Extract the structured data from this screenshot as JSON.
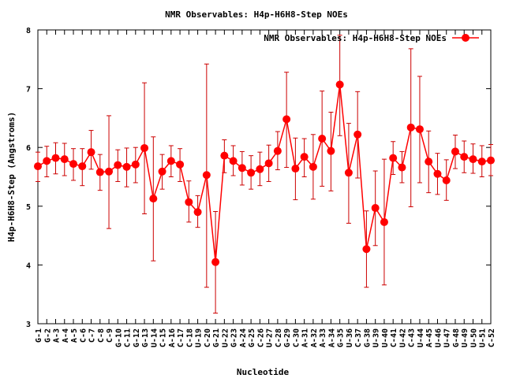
{
  "chart_data": {
    "type": "line",
    "title": "NMR Observables: H4p-H6H8-Step NOEs",
    "xlabel": "Nucleotide",
    "ylabel": "H4p-H6H8-Step (Angstroms)",
    "ylim": [
      3,
      8
    ],
    "xlim": [
      1,
      52
    ],
    "yticks": [
      "3",
      "4",
      "5",
      "6",
      "7",
      "8"
    ],
    "legend_position": "top-right",
    "grid": false,
    "line_color": "#ff0000",
    "marker_color": "#ff0000",
    "error_bar_color": "#cc0000",
    "categories": [
      "G-1",
      "G-2",
      "A-3",
      "A-4",
      "A-5",
      "C-6",
      "C-7",
      "C-8",
      "C-9",
      "G-10",
      "C-11",
      "G-12",
      "G-13",
      "U-14",
      "C-15",
      "A-16",
      "C-17",
      "C-18",
      "U-19",
      "C-20",
      "G-21",
      "U-22",
      "G-23",
      "A-24",
      "G-25",
      "C-26",
      "U-27",
      "C-28",
      "G-29",
      "C-30",
      "A-31",
      "A-32",
      "A-33",
      "A-34",
      "G-35",
      "U-36",
      "C-37",
      "G-38",
      "U-39",
      "U-40",
      "C-41",
      "U-42",
      "C-43",
      "U-44",
      "A-45",
      "U-46",
      "U-47",
      "G-48",
      "U-49",
      "U-50",
      "U-51",
      "C-52"
    ],
    "series": [
      {
        "name": "NMR Observables: H4p-H6H8-Step NOEs",
        "values": [
          5.68,
          5.77,
          5.82,
          5.8,
          5.72,
          5.68,
          5.92,
          5.58,
          5.59,
          5.7,
          5.67,
          5.71,
          5.99,
          5.13,
          5.59,
          5.77,
          5.71,
          5.07,
          4.9,
          5.53,
          4.05,
          5.86,
          5.77,
          5.65,
          5.57,
          5.63,
          5.73,
          5.94,
          6.48,
          5.64,
          5.84,
          5.67,
          6.15,
          5.94,
          7.07,
          5.57,
          6.22,
          4.27,
          4.97,
          4.73,
          5.82,
          5.66,
          6.34,
          6.31,
          5.76,
          5.55,
          5.44,
          5.93,
          5.84,
          5.8,
          5.76,
          5.78
        ],
        "lower": [
          5.42,
          5.5,
          5.55,
          5.52,
          5.44,
          5.35,
          5.63,
          5.27,
          4.62,
          5.42,
          5.33,
          5.4,
          4.87,
          4.07,
          5.29,
          5.5,
          5.42,
          4.73,
          4.64,
          3.62,
          3.18,
          5.57,
          5.52,
          5.36,
          5.29,
          5.35,
          5.42,
          5.62,
          5.66,
          5.11,
          5.5,
          5.12,
          5.34,
          5.26,
          6.2,
          4.71,
          5.48,
          3.62,
          4.33,
          3.66,
          5.54,
          5.4,
          4.99,
          5.4,
          5.23,
          5.2,
          5.1,
          5.64,
          5.57,
          5.56,
          5.5,
          5.52
        ],
        "upper": [
          5.92,
          6.02,
          6.08,
          6.07,
          5.98,
          5.98,
          6.29,
          5.88,
          6.54,
          5.96,
          5.99,
          6.0,
          7.1,
          6.18,
          5.88,
          6.03,
          5.98,
          5.43,
          5.18,
          7.42,
          4.91,
          6.13,
          6.03,
          5.93,
          5.86,
          5.92,
          6.04,
          6.27,
          7.28,
          6.16,
          6.15,
          6.22,
          6.96,
          6.6,
          7.91,
          6.41,
          6.95,
          4.92,
          5.6,
          5.8,
          6.1,
          5.93,
          7.68,
          7.21,
          6.28,
          5.9,
          5.79,
          6.21,
          6.11,
          6.06,
          6.03,
          6.05
        ]
      }
    ]
  }
}
